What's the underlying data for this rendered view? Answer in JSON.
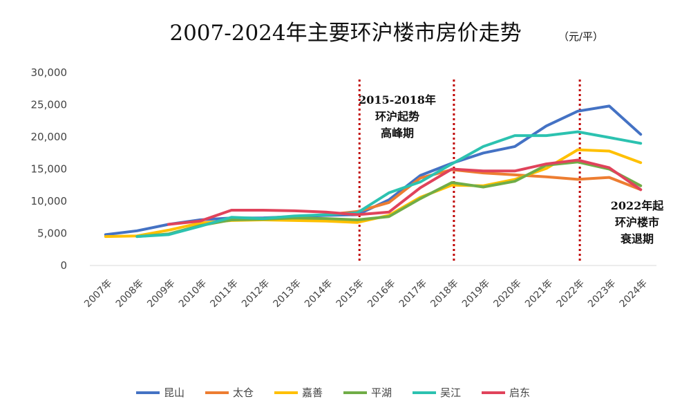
{
  "chart_data": {
    "type": "line",
    "title": "2007-2024年主要环沪楼市房价走势",
    "unit": "（元/平）",
    "xlabel": "",
    "ylabel": "",
    "ylim": [
      0,
      30000
    ],
    "yticks": [
      0,
      5000,
      10000,
      15000,
      20000,
      25000,
      30000
    ],
    "ytick_labels": [
      "0",
      "5,000",
      "10,000",
      "15,000",
      "20,000",
      "25,000",
      "30,000"
    ],
    "categories": [
      "2007年",
      "2008年",
      "2009年",
      "2010年",
      "2011年",
      "2012年",
      "2013年",
      "2014年",
      "2015年",
      "2016年",
      "2017年",
      "2018年",
      "2019年",
      "2020年",
      "2021年",
      "2022年",
      "2023年",
      "2024年"
    ],
    "legend_position": "bottom",
    "grid": false,
    "series": [
      {
        "name": "昆山",
        "color": "#4472c4",
        "values": [
          4800,
          5400,
          6400,
          7100,
          7400,
          7400,
          7600,
          7800,
          7900,
          10200,
          14000,
          15900,
          17500,
          18500,
          21700,
          24000,
          24800,
          20400
        ]
      },
      {
        "name": "太仓",
        "color": "#ed7d31",
        "values": [
          null,
          null,
          null,
          null,
          null,
          null,
          null,
          7900,
          8400,
          9800,
          13600,
          14900,
          14400,
          14100,
          13800,
          13400,
          13700,
          11800
        ]
      },
      {
        "name": "嘉善",
        "color": "#ffc000",
        "values": [
          4500,
          4600,
          5500,
          6600,
          7000,
          7100,
          7000,
          6900,
          6700,
          7800,
          10600,
          12500,
          12400,
          13400,
          15100,
          18000,
          17800,
          16000
        ]
      },
      {
        "name": "平湖",
        "color": "#70ad47",
        "values": [
          null,
          4500,
          4900,
          6200,
          7100,
          7200,
          7400,
          7300,
          7100,
          7600,
          10400,
          12900,
          12200,
          13100,
          15600,
          16100,
          15000,
          12400
        ]
      },
      {
        "name": "吴江",
        "color": "#2cc2b0",
        "values": [
          null,
          4500,
          4800,
          6100,
          7500,
          7300,
          7700,
          7900,
          8200,
          11300,
          13000,
          15800,
          18500,
          20200,
          20200,
          20800,
          19900,
          19000
        ]
      },
      {
        "name": "启东",
        "color": "#e0435b",
        "values": [
          null,
          null,
          6400,
          6900,
          8600,
          8600,
          8500,
          8300,
          7900,
          8300,
          12100,
          15000,
          14700,
          14700,
          15800,
          16400,
          15200,
          11800
        ]
      }
    ],
    "markers": [
      {
        "category": "2015年",
        "color": "#c00000"
      },
      {
        "category": "2018年",
        "color": "#c00000"
      },
      {
        "category": "2022年",
        "color": "#c00000"
      }
    ],
    "annotations": [
      {
        "lines": [
          "2015-2018年",
          "环沪起势",
          "高峰期"
        ]
      },
      {
        "lines": [
          "2022年起",
          "环沪楼市",
          "衰退期"
        ]
      }
    ]
  }
}
